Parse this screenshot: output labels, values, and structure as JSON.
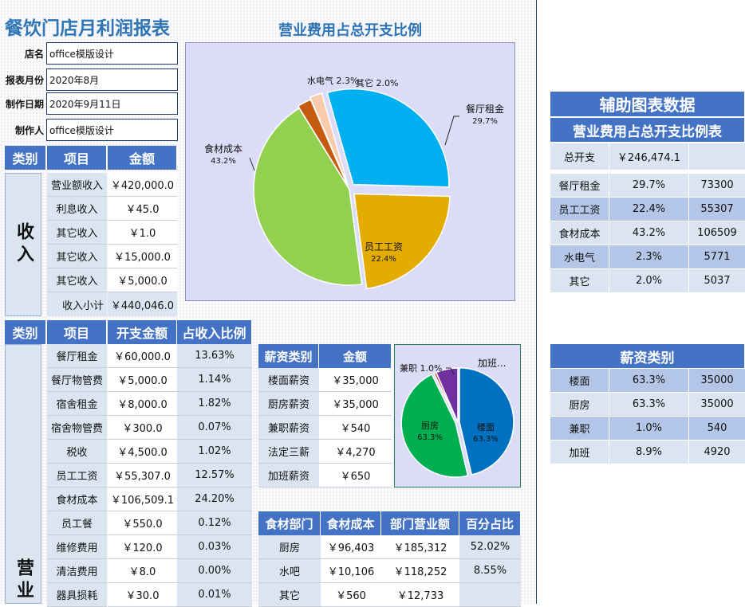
{
  "report": {
    "title": "餐饮门店月利润报表",
    "info": [
      {
        "label": "店名",
        "value": "office模版设计"
      },
      {
        "label": "报表月份",
        "value": "2020年8月"
      },
      {
        "label": "制作日期",
        "value": "2020年9月11日"
      },
      {
        "label": "制作人",
        "value": "office模版设计"
      }
    ]
  },
  "income": {
    "headers": [
      "类别",
      "项目",
      "金额"
    ],
    "category": "收入",
    "rows": [
      {
        "item": "营业额收入",
        "amount": "￥420,000.0"
      },
      {
        "item": "利息收入",
        "amount": "￥45.0"
      },
      {
        "item": "其它收入",
        "amount": "￥1.0"
      },
      {
        "item": "其它收入",
        "amount": "￥15,000.0"
      },
      {
        "item": "其它收入",
        "amount": "￥5,000.0"
      }
    ],
    "subtotal_label": "收入小计",
    "subtotal_value": "￥440,046.0"
  },
  "expense": {
    "headers": [
      "类别",
      "项目",
      "开支金额",
      "占收入比例"
    ],
    "category": "营业",
    "rows": [
      {
        "item": "餐厅租金",
        "amount": "￥60,000.0",
        "ratio": "13.63%"
      },
      {
        "item": "餐厅物管费",
        "amount": "￥5,000.0",
        "ratio": "1.14%"
      },
      {
        "item": "宿舍租金",
        "amount": "￥8,000.0",
        "ratio": "1.82%"
      },
      {
        "item": "宿舍物管费",
        "amount": "￥300.0",
        "ratio": "0.07%"
      },
      {
        "item": "税收",
        "amount": "￥4,500.0",
        "ratio": "1.02%"
      },
      {
        "item": "员工工资",
        "amount": "￥55,307.0",
        "ratio": "12.57%"
      },
      {
        "item": "食材成本",
        "amount": "￥106,509.1",
        "ratio": "24.20%"
      },
      {
        "item": "员工餐",
        "amount": "￥550.0",
        "ratio": "0.12%"
      },
      {
        "item": "维修费用",
        "amount": "￥120.0",
        "ratio": "0.03%"
      },
      {
        "item": "清洁费用",
        "amount": "￥8.0",
        "ratio": "0.00%"
      },
      {
        "item": "器具损耗",
        "amount": "￥30.0",
        "ratio": "0.01%"
      }
    ]
  },
  "salary": {
    "headers": [
      "薪资类别",
      "金额"
    ],
    "rows": [
      {
        "type": "楼面薪资",
        "amount": "￥35,000"
      },
      {
        "type": "厨房薪资",
        "amount": "￥35,000"
      },
      {
        "type": "兼职薪资",
        "amount": "￥540"
      },
      {
        "type": "法定三薪",
        "amount": "￥4,270"
      },
      {
        "type": "加班薪资",
        "amount": "￥650"
      }
    ]
  },
  "food": {
    "headers": [
      "食材部门",
      "食材成本",
      "部门营业额",
      "百分占比"
    ],
    "rows": [
      {
        "dept": "厨房",
        "cost": "￥96,403",
        "revenue": "￥185,312",
        "pct": "52.02%"
      },
      {
        "dept": "水吧",
        "cost": "￥10,106",
        "revenue": "￥118,252",
        "pct": "8.55%"
      },
      {
        "dept": "其它",
        "cost": "￥560",
        "revenue": "￥12,733",
        "pct": ""
      }
    ]
  },
  "aux": {
    "title": "辅助图表数据",
    "expense_title": "营业费用占总开支比例表",
    "total_label": "总开支",
    "total_value": "￥246,474.1",
    "expense_rows": [
      {
        "name": "餐厅租金",
        "pct": "29.7%",
        "value": "73300"
      },
      {
        "name": "员工工资",
        "pct": "22.4%",
        "value": "55307"
      },
      {
        "name": "食材成本",
        "pct": "43.2%",
        "value": "106509"
      },
      {
        "name": "水电气",
        "pct": "2.3%",
        "value": "5771"
      },
      {
        "name": "其它",
        "pct": "2.0%",
        "value": "5037"
      }
    ],
    "salary_title": "薪资类别",
    "salary_rows": [
      {
        "name": "楼面",
        "pct": "63.3%",
        "value": "35000"
      },
      {
        "name": "厨房",
        "pct": "63.3%",
        "value": "35000"
      },
      {
        "name": "兼职",
        "pct": "1.0%",
        "value": "540"
      },
      {
        "name": "加班",
        "pct": "8.9%",
        "value": "4920"
      }
    ]
  },
  "chart_data": [
    {
      "type": "pie",
      "title": "营业费用占总开支比例",
      "categories": [
        "餐厅租金",
        "员工工资",
        "食材成本",
        "水电气",
        "其它"
      ],
      "values": [
        73300,
        55307,
        106509,
        5771,
        5037
      ],
      "labels": [
        "29.7%",
        "22.4%",
        "43.2%",
        "2.3%",
        "2.0%"
      ],
      "colors": [
        "#00b0f0",
        "#e3ac00",
        "#92d050",
        "#c55a11",
        "#f8cbad"
      ]
    },
    {
      "type": "pie",
      "title": "",
      "categories": [
        "楼面",
        "厨房",
        "兼职",
        "加班"
      ],
      "values": [
        35000,
        35000,
        540,
        4920
      ],
      "labels": [
        "63.3%",
        "63.3%",
        "1.0%",
        "加班..."
      ],
      "colors": [
        "#0070c0",
        "#00b050",
        "#e04040",
        "#7030a0"
      ]
    }
  ]
}
